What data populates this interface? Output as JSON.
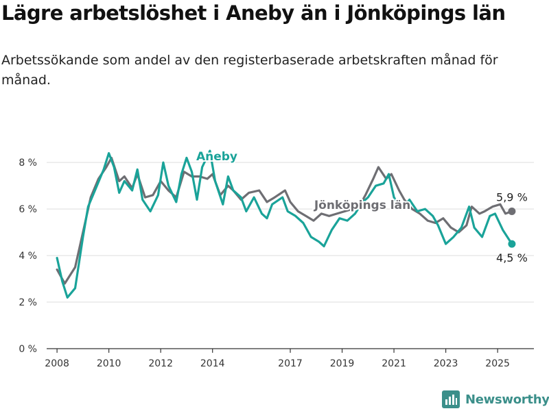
{
  "header": {
    "title": "Lägre arbetslöshet i Aneby än i Jönköpings län",
    "subtitle": "Arbetssökande som andel av den registerbaserade arbetskraften månad för månad."
  },
  "brand": {
    "name": "Newsworthy",
    "icon": "bar-chart-logo-icon",
    "color": "#3b8f8a"
  },
  "chart_data": {
    "type": "line",
    "ylim": [
      0,
      8.8
    ],
    "xlim": [
      2007.6,
      2026.4
    ],
    "y_ticks": [
      0,
      2,
      4,
      6,
      8
    ],
    "y_tick_labels": [
      "0 %",
      "2 %",
      "4 %",
      "6 %",
      "8 %"
    ],
    "x_ticks": [
      2008,
      2010,
      2012,
      2014,
      2017,
      2019,
      2021,
      2023,
      2025
    ],
    "x_tick_labels": [
      "2008",
      "2010",
      "2012",
      "2014",
      "2017",
      "2019",
      "2021",
      "2023",
      "2025"
    ],
    "grid": true,
    "series": [
      {
        "name": "Jönköpings län",
        "color": "#6e6e73",
        "last_label": "5,9 %",
        "points": [
          [
            2008.0,
            3.4
          ],
          [
            2008.3,
            2.8
          ],
          [
            2008.7,
            3.5
          ],
          [
            2009.0,
            5.0
          ],
          [
            2009.3,
            6.5
          ],
          [
            2009.6,
            7.3
          ],
          [
            2009.9,
            7.8
          ],
          [
            2010.1,
            8.2
          ],
          [
            2010.4,
            7.2
          ],
          [
            2010.6,
            7.4
          ],
          [
            2010.9,
            6.9
          ],
          [
            2011.1,
            7.5
          ],
          [
            2011.4,
            6.5
          ],
          [
            2011.7,
            6.6
          ],
          [
            2012.0,
            7.2
          ],
          [
            2012.3,
            6.8
          ],
          [
            2012.6,
            6.5
          ],
          [
            2012.9,
            7.6
          ],
          [
            2013.2,
            7.4
          ],
          [
            2013.5,
            7.4
          ],
          [
            2013.8,
            7.3
          ],
          [
            2014.0,
            7.5
          ],
          [
            2014.3,
            6.6
          ],
          [
            2014.6,
            7.0
          ],
          [
            2014.8,
            6.8
          ],
          [
            2015.1,
            6.4
          ],
          [
            2015.4,
            6.7
          ],
          [
            2015.8,
            6.8
          ],
          [
            2016.1,
            6.3
          ],
          [
            2016.4,
            6.5
          ],
          [
            2016.8,
            6.8
          ],
          [
            2017.0,
            6.3
          ],
          [
            2017.3,
            5.9
          ],
          [
            2017.6,
            5.7
          ],
          [
            2017.9,
            5.5
          ],
          [
            2018.2,
            5.8
          ],
          [
            2018.5,
            5.7
          ],
          [
            2018.8,
            5.8
          ],
          [
            2019.1,
            5.9
          ],
          [
            2019.4,
            6.0
          ],
          [
            2019.7,
            6.2
          ],
          [
            2019.9,
            6.6
          ],
          [
            2020.2,
            7.3
          ],
          [
            2020.4,
            7.8
          ],
          [
            2020.7,
            7.3
          ],
          [
            2020.9,
            7.5
          ],
          [
            2021.2,
            6.8
          ],
          [
            2021.4,
            6.4
          ],
          [
            2021.7,
            6.0
          ],
          [
            2022.0,
            5.8
          ],
          [
            2022.3,
            5.5
          ],
          [
            2022.6,
            5.4
          ],
          [
            2022.9,
            5.6
          ],
          [
            2023.2,
            5.2
          ],
          [
            2023.5,
            5.0
          ],
          [
            2023.8,
            5.3
          ],
          [
            2024.0,
            6.1
          ],
          [
            2024.3,
            5.8
          ],
          [
            2024.5,
            5.9
          ],
          [
            2024.8,
            6.1
          ],
          [
            2025.1,
            6.2
          ],
          [
            2025.3,
            5.8
          ],
          [
            2025.55,
            5.9
          ]
        ]
      },
      {
        "name": "Aneby",
        "color": "#1aa399",
        "last_label": "4,5 %",
        "points": [
          [
            2008.0,
            3.9
          ],
          [
            2008.2,
            2.9
          ],
          [
            2008.4,
            2.2
          ],
          [
            2008.7,
            2.6
          ],
          [
            2009.0,
            4.8
          ],
          [
            2009.2,
            6.1
          ],
          [
            2009.5,
            6.9
          ],
          [
            2009.8,
            7.7
          ],
          [
            2010.0,
            8.4
          ],
          [
            2010.2,
            7.8
          ],
          [
            2010.4,
            6.7
          ],
          [
            2010.6,
            7.2
          ],
          [
            2010.9,
            6.8
          ],
          [
            2011.1,
            7.7
          ],
          [
            2011.3,
            6.4
          ],
          [
            2011.6,
            5.9
          ],
          [
            2011.9,
            6.6
          ],
          [
            2012.1,
            8.0
          ],
          [
            2012.3,
            7.0
          ],
          [
            2012.6,
            6.3
          ],
          [
            2012.8,
            7.5
          ],
          [
            2013.0,
            8.2
          ],
          [
            2013.2,
            7.6
          ],
          [
            2013.4,
            6.4
          ],
          [
            2013.6,
            7.8
          ],
          [
            2013.9,
            8.5
          ],
          [
            2014.1,
            7.2
          ],
          [
            2014.4,
            6.2
          ],
          [
            2014.6,
            7.4
          ],
          [
            2014.8,
            6.8
          ],
          [
            2015.1,
            6.5
          ],
          [
            2015.3,
            5.9
          ],
          [
            2015.6,
            6.5
          ],
          [
            2015.9,
            5.8
          ],
          [
            2016.1,
            5.6
          ],
          [
            2016.3,
            6.2
          ],
          [
            2016.7,
            6.5
          ],
          [
            2016.9,
            5.9
          ],
          [
            2017.2,
            5.7
          ],
          [
            2017.5,
            5.4
          ],
          [
            2017.8,
            4.8
          ],
          [
            2018.1,
            4.6
          ],
          [
            2018.3,
            4.4
          ],
          [
            2018.6,
            5.1
          ],
          [
            2018.9,
            5.6
          ],
          [
            2019.2,
            5.5
          ],
          [
            2019.5,
            5.8
          ],
          [
            2019.8,
            6.3
          ],
          [
            2020.0,
            6.5
          ],
          [
            2020.3,
            7.0
          ],
          [
            2020.6,
            7.1
          ],
          [
            2020.8,
            7.5
          ],
          [
            2021.0,
            6.5
          ],
          [
            2021.3,
            6.0
          ],
          [
            2021.6,
            6.4
          ],
          [
            2021.9,
            5.9
          ],
          [
            2022.2,
            6.0
          ],
          [
            2022.5,
            5.7
          ],
          [
            2022.7,
            5.3
          ],
          [
            2023.0,
            4.5
          ],
          [
            2023.3,
            4.8
          ],
          [
            2023.6,
            5.2
          ],
          [
            2023.9,
            6.1
          ],
          [
            2024.1,
            5.2
          ],
          [
            2024.4,
            4.8
          ],
          [
            2024.7,
            5.7
          ],
          [
            2024.9,
            5.8
          ],
          [
            2025.2,
            5.1
          ],
          [
            2025.55,
            4.5
          ]
        ]
      }
    ]
  }
}
